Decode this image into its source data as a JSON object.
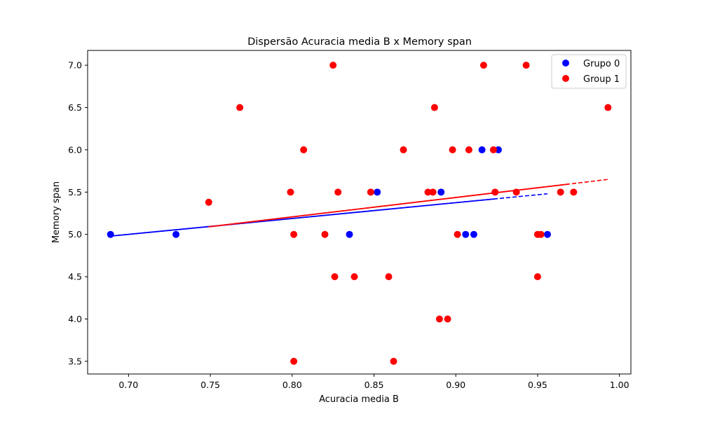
{
  "chart_data": {
    "type": "scatter",
    "title": "Dispersão Acuracia media B x Memory span",
    "xlabel": "Acuracia media B",
    "ylabel": "Memory span",
    "xlim": [
      0.675,
      1.007
    ],
    "ylim": [
      3.35,
      7.175
    ],
    "xticks": [
      0.7,
      0.75,
      0.8,
      0.85,
      0.9,
      0.95,
      1.0
    ],
    "xtick_labels": [
      "0.70",
      "0.75",
      "0.80",
      "0.85",
      "0.90",
      "0.95",
      "1.00"
    ],
    "yticks": [
      3.5,
      4.0,
      4.5,
      5.0,
      5.5,
      6.0,
      6.5,
      7.0
    ],
    "ytick_labels": [
      "3.5",
      "4.0",
      "4.5",
      "5.0",
      "5.5",
      "6.0",
      "6.5",
      "7.0"
    ],
    "grid": false,
    "legend_position": "top-right",
    "series": [
      {
        "name": "Grupo 0",
        "color": "#0000ff",
        "points": [
          [
            0.689,
            5.0
          ],
          [
            0.729,
            5.0
          ],
          [
            0.835,
            5.0
          ],
          [
            0.852,
            5.5
          ],
          [
            0.891,
            5.5
          ],
          [
            0.906,
            5.0
          ],
          [
            0.911,
            5.0
          ],
          [
            0.916,
            6.0
          ],
          [
            0.926,
            6.0
          ],
          [
            0.956,
            5.0
          ]
        ],
        "trend": {
          "x": [
            0.689,
            0.956
          ],
          "y": [
            4.98,
            5.48
          ]
        }
      },
      {
        "name": "Group 1",
        "color": "#ff0000",
        "points": [
          [
            0.749,
            5.38
          ],
          [
            0.768,
            6.5
          ],
          [
            0.799,
            5.5
          ],
          [
            0.801,
            3.5
          ],
          [
            0.801,
            5.0
          ],
          [
            0.807,
            6.0
          ],
          [
            0.82,
            5.0
          ],
          [
            0.825,
            7.0
          ],
          [
            0.826,
            4.5
          ],
          [
            0.828,
            5.5
          ],
          [
            0.838,
            4.5
          ],
          [
            0.848,
            5.5
          ],
          [
            0.859,
            4.5
          ],
          [
            0.862,
            3.5
          ],
          [
            0.868,
            6.0
          ],
          [
            0.883,
            5.5
          ],
          [
            0.886,
            5.5
          ],
          [
            0.887,
            6.5
          ],
          [
            0.89,
            4.0
          ],
          [
            0.895,
            4.0
          ],
          [
            0.898,
            6.0
          ],
          [
            0.901,
            5.0
          ],
          [
            0.908,
            6.0
          ],
          [
            0.917,
            7.0
          ],
          [
            0.923,
            6.0
          ],
          [
            0.924,
            5.5
          ],
          [
            0.937,
            5.5
          ],
          [
            0.943,
            7.0
          ],
          [
            0.95,
            4.5
          ],
          [
            0.95,
            5.0
          ],
          [
            0.952,
            5.0
          ],
          [
            0.964,
            5.5
          ],
          [
            0.972,
            5.5
          ],
          [
            0.993,
            6.5
          ]
        ],
        "trend": {
          "x": [
            0.749,
            0.993
          ],
          "y": [
            5.09,
            5.65
          ]
        }
      }
    ]
  }
}
